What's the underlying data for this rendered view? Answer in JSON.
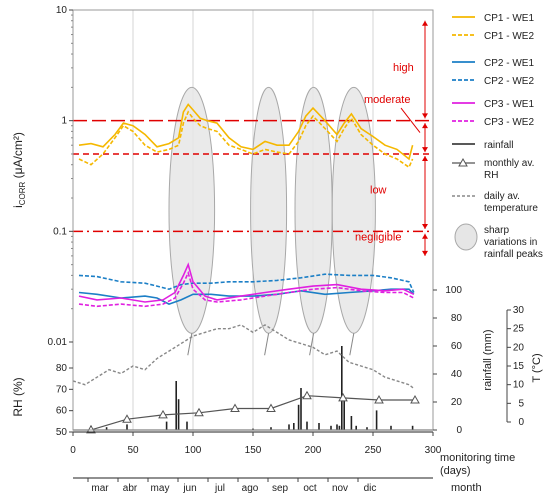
{
  "chart_data": {
    "type": "line",
    "panels": {
      "corrosion": {
        "ylabel_main": "i",
        "ylabel_sub": "CORR",
        "ylabel_unit": " (μA/cm²)",
        "y_scale": "log",
        "ylim": [
          0.01,
          10
        ],
        "y_ticks": [
          "10",
          "1",
          "0.1",
          "0.01"
        ],
        "thresholds": [
          {
            "value": 1.0,
            "style": "long-dash"
          },
          {
            "value": 0.5,
            "style": "short-dash"
          },
          {
            "value": 0.1,
            "style": "dash-dot"
          }
        ],
        "levels": [
          "high",
          "moderate",
          "low",
          "negligible"
        ],
        "sharp_variation_ellipses_days": [
          [
            80,
            118
          ],
          [
            148,
            178
          ],
          [
            185,
            216
          ],
          [
            216,
            252
          ]
        ],
        "series": [
          {
            "name": "CP1 - WE1",
            "color": "#f5b800",
            "dash": "solid",
            "x": [
              5,
              15,
              25,
              35,
              42,
              50,
              60,
              70,
              80,
              88,
              92,
              96,
              100,
              106,
              112,
              120,
              130,
              140,
              150,
              160,
              170,
              180,
              188,
              194,
              200,
              210,
              220,
              226,
              232,
              240,
              250,
              260,
              270,
              280,
              283
            ],
            "y": [
              0.6,
              0.62,
              0.58,
              0.75,
              0.95,
              0.9,
              0.75,
              0.58,
              0.62,
              0.7,
              1.2,
              1.4,
              1.25,
              1.05,
              1.0,
              0.95,
              0.7,
              0.58,
              0.55,
              0.65,
              0.6,
              0.6,
              0.8,
              1.1,
              1.3,
              1.0,
              0.75,
              0.95,
              1.15,
              0.85,
              0.72,
              0.6,
              0.55,
              0.45,
              0.6
            ]
          },
          {
            "name": "CP1 - WE2",
            "color": "#f5b800",
            "dash": "dashed",
            "x": [
              5,
              15,
              25,
              35,
              42,
              50,
              60,
              70,
              80,
              88,
              92,
              96,
              100,
              106,
              112,
              120,
              130,
              140,
              150,
              160,
              170,
              180,
              188,
              194,
              200,
              210,
              220,
              226,
              232,
              240,
              250,
              260,
              270,
              280,
              283
            ],
            "y": [
              0.45,
              0.4,
              0.5,
              0.7,
              0.9,
              0.8,
              0.6,
              0.52,
              0.55,
              0.6,
              0.95,
              1.2,
              1.05,
              0.9,
              0.85,
              0.8,
              0.6,
              0.55,
              0.5,
              0.55,
              0.52,
              0.5,
              0.65,
              0.9,
              1.1,
              0.85,
              0.65,
              0.85,
              1.05,
              0.75,
              0.6,
              0.5,
              0.45,
              0.38,
              0.45
            ]
          },
          {
            "name": "CP2 - WE1",
            "color": "#1c7fc6",
            "dash": "solid",
            "x": [
              5,
              20,
              40,
              60,
              70,
              80,
              90,
              100,
              115,
              130,
              150,
              170,
              190,
              210,
              230,
              250,
              265,
              280,
              284
            ],
            "y": [
              0.028,
              0.027,
              0.025,
              0.026,
              0.025,
              0.022,
              0.024,
              0.027,
              0.027,
              0.026,
              0.026,
              0.027,
              0.029,
              0.027,
              0.028,
              0.029,
              0.03,
              0.03,
              0.027
            ]
          },
          {
            "name": "CP2 - WE2",
            "color": "#1c7fc6",
            "dash": "dashed",
            "x": [
              5,
              20,
              40,
              60,
              70,
              80,
              90,
              100,
              115,
              130,
              150,
              170,
              190,
              210,
              230,
              250,
              265,
              280,
              284
            ],
            "y": [
              0.04,
              0.039,
              0.035,
              0.034,
              0.032,
              0.03,
              0.033,
              0.034,
              0.034,
              0.035,
              0.035,
              0.036,
              0.038,
              0.041,
              0.04,
              0.04,
              0.038,
              0.035,
              0.028
            ]
          },
          {
            "name": "CP3 - WE1",
            "color": "#e020e0",
            "dash": "solid",
            "x": [
              5,
              20,
              40,
              60,
              75,
              85,
              92,
              96,
              100,
              110,
              120,
              140,
              160,
              180,
              200,
              220,
              240,
              260,
              275,
              284
            ],
            "y": [
              0.026,
              0.024,
              0.025,
              0.023,
              0.024,
              0.028,
              0.04,
              0.05,
              0.035,
              0.026,
              0.024,
              0.026,
              0.028,
              0.03,
              0.032,
              0.033,
              0.03,
              0.029,
              0.03,
              0.027
            ]
          },
          {
            "name": "CP3 - WE2",
            "color": "#e020e0",
            "dash": "dashed",
            "x": [
              5,
              20,
              40,
              60,
              75,
              85,
              92,
              96,
              100,
              110,
              120,
              140,
              160,
              180,
              200,
              220,
              240,
              260,
              275,
              284
            ],
            "y": [
              0.022,
              0.021,
              0.022,
              0.021,
              0.022,
              0.025,
              0.034,
              0.042,
              0.03,
              0.024,
              0.023,
              0.024,
              0.026,
              0.028,
              0.03,
              0.031,
              0.029,
              0.028,
              0.028,
              0.025
            ]
          }
        ]
      },
      "weather": {
        "rh_label": "RH (%)",
        "rh_ticks": [
          "80",
          "70",
          "60",
          "50"
        ],
        "rh_range": [
          50,
          80
        ],
        "rainfall_label": "rainfall (mm)",
        "rainfall_ticks": [
          "100",
          "80",
          "60",
          "40",
          "20",
          "0"
        ],
        "rainfall_range": [
          0,
          100
        ],
        "temp_label": "T (°C)",
        "temp_ticks": [
          "30",
          "25",
          "20",
          "15",
          "10",
          "5",
          "0"
        ],
        "temp_range": [
          0,
          30
        ],
        "rainfall": {
          "name": "rainfall",
          "x": [
            15,
            28,
            45,
            78,
            86,
            88,
            95,
            150,
            165,
            180,
            184,
            188,
            190,
            195,
            205,
            215,
            220,
            222,
            224,
            226,
            232,
            236,
            245,
            253,
            265,
            283
          ],
          "y": [
            3,
            2,
            4,
            6,
            35,
            22,
            6,
            1,
            2,
            4,
            5,
            18,
            30,
            6,
            5,
            3,
            4,
            3,
            60,
            22,
            10,
            3,
            2,
            14,
            3,
            3
          ]
        },
        "monthly_rh": {
          "name": "monthly av. RH",
          "x": [
            15,
            45,
            75,
            105,
            135,
            165,
            195,
            225,
            255,
            285
          ],
          "y": [
            51,
            56,
            58,
            59,
            61,
            61,
            67,
            66,
            65,
            65
          ]
        },
        "daily_temp": {
          "name": "daily av. temperature",
          "x": [
            0,
            10,
            20,
            30,
            40,
            50,
            60,
            70,
            80,
            90,
            100,
            110,
            120,
            130,
            140,
            150,
            160,
            170,
            180,
            190,
            200,
            210,
            220,
            230,
            240,
            250,
            260,
            270,
            280,
            284
          ],
          "y": [
            11,
            10,
            12,
            14,
            13,
            15,
            14,
            17,
            19,
            21,
            23,
            24,
            25,
            25,
            26,
            24,
            26,
            24,
            22,
            21,
            20,
            18,
            19,
            16,
            15,
            14,
            12,
            11,
            10,
            9
          ]
        }
      }
    },
    "x_axis": {
      "label_line1": "monitoring time",
      "label_line2": "(days)",
      "xlim": [
        0,
        300
      ],
      "ticks": [
        "0",
        "50",
        "100",
        "150",
        "200",
        "250",
        "300"
      ]
    },
    "months": {
      "label": "month",
      "names": [
        "mar",
        "abr",
        "may",
        "jun",
        "jul",
        "ago",
        "sep",
        "oct",
        "nov",
        "dic"
      ]
    },
    "legend_extra": {
      "ellipse_label": "sharp variations in rainfall peaks"
    }
  }
}
